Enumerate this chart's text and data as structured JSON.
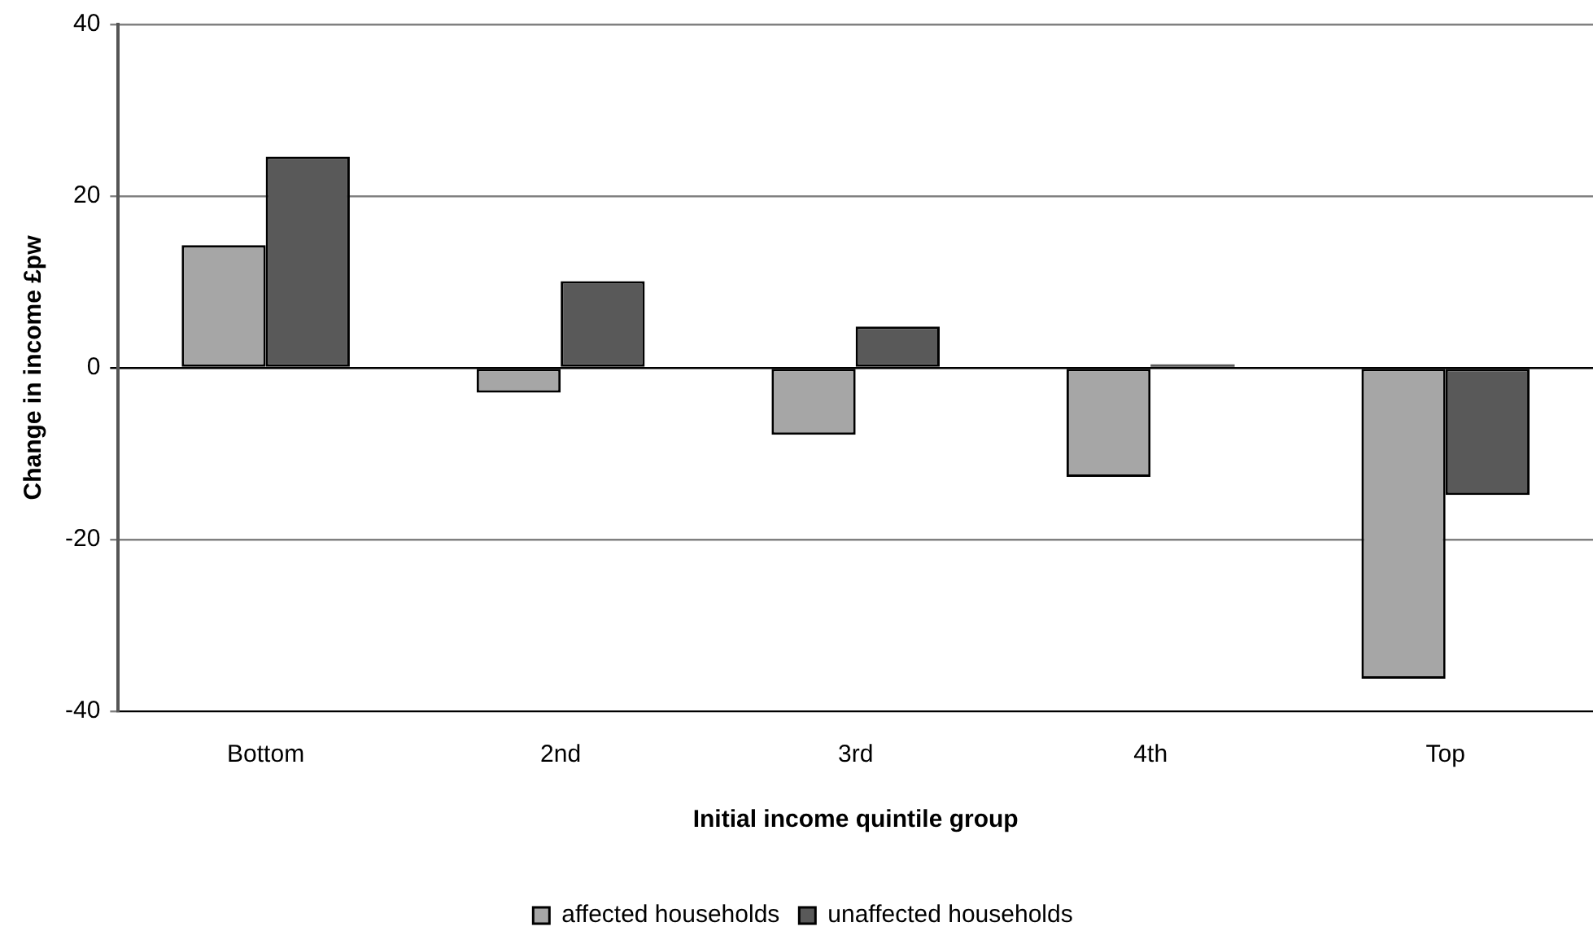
{
  "chart_data": {
    "type": "bar",
    "xlabel": "Initial income quintile group",
    "ylabel": "Change in income £pw",
    "categories": [
      "Bottom",
      "2nd",
      "3rd",
      "4th",
      "Top"
    ],
    "series": [
      {
        "name": "affected households",
        "color": "#a6a6a6",
        "values": [
          14.3,
          -2.9,
          -7.8,
          -12.7,
          -36.2
        ]
      },
      {
        "name": "unaffected households",
        "color": "#595959",
        "values": [
          24.6,
          10.1,
          4.8,
          0.4,
          -14.8
        ]
      }
    ],
    "ylim": [
      -40,
      40
    ],
    "yticks": [
      -40,
      -20,
      0,
      20,
      40
    ],
    "grid": "y",
    "legend": "bottom"
  }
}
